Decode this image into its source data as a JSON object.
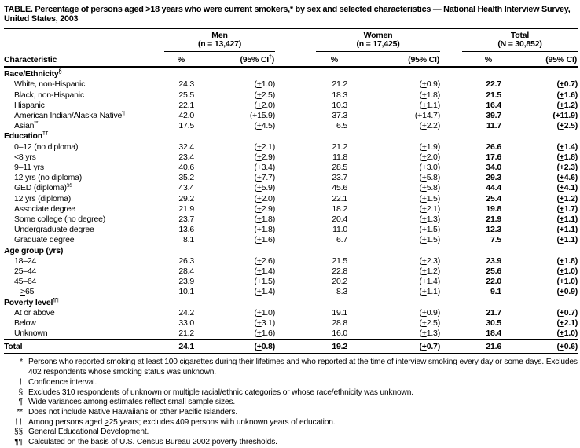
{
  "title": "TABLE. Percentage of persons aged ≥18 years who were current smokers,* by sex and selected characteristics — National Health Interview Survey, United States, 2003",
  "table": {
    "characteristic_header": "Characteristic",
    "groups": [
      {
        "label": "Men",
        "n": "(n = 13,427)",
        "pct_header": "%",
        "ci_header": "(95% CI†)"
      },
      {
        "label": "Women",
        "n": "(n = 17,425)",
        "pct_header": "%",
        "ci_header": "(95% CI)"
      },
      {
        "label": "Total",
        "n": "(N = 30,852)",
        "pct_header": "%",
        "ci_header": "(95% CI)"
      }
    ],
    "sections": [
      {
        "header": "Race/Ethnicity",
        "header_sup": "§",
        "rows": [
          {
            "label": "White, non-Hispanic",
            "sup": "",
            "indent": 1,
            "men": [
              "24.3",
              "(±1.0)"
            ],
            "women": [
              "21.2",
              "(±0.9)"
            ],
            "total": [
              "22.7",
              "(±0.7)"
            ]
          },
          {
            "label": "Black, non-Hispanic",
            "sup": "",
            "indent": 1,
            "men": [
              "25.5",
              "(±2.5)"
            ],
            "women": [
              "18.3",
              "(±1.8)"
            ],
            "total": [
              "21.5",
              "(±1.6)"
            ]
          },
          {
            "label": "Hispanic",
            "sup": "",
            "indent": 1,
            "men": [
              "22.1",
              "(±2.0)"
            ],
            "women": [
              "10.3",
              "(±1.1)"
            ],
            "total": [
              "16.4",
              "(±1.2)"
            ]
          },
          {
            "label": "American Indian/Alaska Native",
            "sup": "¶",
            "indent": 1,
            "men": [
              "42.0",
              "(±15.9)"
            ],
            "women": [
              "37.3",
              "(±14.7)"
            ],
            "total": [
              "39.7",
              "(±11.9)"
            ]
          },
          {
            "label": "Asian",
            "sup": "**",
            "indent": 1,
            "men": [
              "17.5",
              "(±4.5)"
            ],
            "women": [
              "6.5",
              "(±2.2)"
            ],
            "total": [
              "11.7",
              "(±2.5)"
            ]
          }
        ]
      },
      {
        "header": "Education",
        "header_sup": "††",
        "rows": [
          {
            "label": "0–12 (no diploma)",
            "sup": "",
            "indent": 1,
            "men": [
              "32.4",
              "(±2.1)"
            ],
            "women": [
              "21.2",
              "(±1.9)"
            ],
            "total": [
              "26.6",
              "(±1.4)"
            ]
          },
          {
            "label": "<8 yrs",
            "sup": "",
            "indent": 1,
            "men": [
              "23.4",
              "(±2.9)"
            ],
            "women": [
              "11.8",
              "(±2.0)"
            ],
            "total": [
              "17.6",
              "(±1.8)"
            ]
          },
          {
            "label": "9–11 yrs",
            "sup": "",
            "indent": 1,
            "men": [
              "40.6",
              "(±3.4)"
            ],
            "women": [
              "28.5",
              "(±3.0)"
            ],
            "total": [
              "34.0",
              "(±2.3)"
            ]
          },
          {
            "label": "12 yrs (no diploma)",
            "sup": "",
            "indent": 1,
            "men": [
              "35.2",
              "(±7.7)"
            ],
            "women": [
              "23.7",
              "(±5.8)"
            ],
            "total": [
              "29.3",
              "(±4.6)"
            ]
          },
          {
            "label": "GED (diploma)",
            "sup": "§§",
            "indent": 1,
            "men": [
              "43.4",
              "(±5.9)"
            ],
            "women": [
              "45.6",
              "(±5.8)"
            ],
            "total": [
              "44.4",
              "(±4.1)"
            ]
          },
          {
            "label": "12 yrs (diploma)",
            "sup": "",
            "indent": 1,
            "men": [
              "29.2",
              "(±2.0)"
            ],
            "women": [
              "22.1",
              "(±1.5)"
            ],
            "total": [
              "25.4",
              "(±1.2)"
            ]
          },
          {
            "label": "Associate degree",
            "sup": "",
            "indent": 1,
            "men": [
              "21.9",
              "(±2.9)"
            ],
            "women": [
              "18.2",
              "(±2.1)"
            ],
            "total": [
              "19.8",
              "(±1.7)"
            ]
          },
          {
            "label": "Some college (no degree)",
            "sup": "",
            "indent": 1,
            "men": [
              "23.7",
              "(±1.8)"
            ],
            "women": [
              "20.4",
              "(±1.3)"
            ],
            "total": [
              "21.9",
              "(±1.1)"
            ]
          },
          {
            "label": "Undergraduate degree",
            "sup": "",
            "indent": 1,
            "men": [
              "13.6",
              "(±1.8)"
            ],
            "women": [
              "11.0",
              "(±1.5)"
            ],
            "total": [
              "12.3",
              "(±1.1)"
            ]
          },
          {
            "label": "Graduate degree",
            "sup": "",
            "indent": 1,
            "men": [
              "8.1",
              "(±1.6)"
            ],
            "women": [
              "6.7",
              "(±1.5)"
            ],
            "total": [
              "7.5",
              "(±1.1)"
            ]
          }
        ]
      },
      {
        "header": "Age group (yrs)",
        "header_sup": "",
        "rows": [
          {
            "label": "18–24",
            "sup": "",
            "indent": 1,
            "men": [
              "26.3",
              "(±2.6)"
            ],
            "women": [
              "21.5",
              "(±2.3)"
            ],
            "total": [
              "23.9",
              "(±1.8)"
            ]
          },
          {
            "label": "25–44",
            "sup": "",
            "indent": 1,
            "men": [
              "28.4",
              "(±1.4)"
            ],
            "women": [
              "22.8",
              "(±1.2)"
            ],
            "total": [
              "25.6",
              "(±1.0)"
            ]
          },
          {
            "label": "45–64",
            "sup": "",
            "indent": 1,
            "men": [
              "23.9",
              "(±1.5)"
            ],
            "women": [
              "20.2",
              "(±1.4)"
            ],
            "total": [
              "22.0",
              "(±1.0)"
            ]
          },
          {
            "label": "≥65",
            "sup": "",
            "indent": 2,
            "men": [
              "10.1",
              "(±1.4)"
            ],
            "women": [
              "8.3",
              "(±1.1)"
            ],
            "total": [
              "9.1",
              "(±0.9)"
            ]
          }
        ]
      },
      {
        "header": "Poverty level",
        "header_sup": "¶¶",
        "rows": [
          {
            "label": "At or above",
            "sup": "",
            "indent": 1,
            "men": [
              "24.2",
              "(±1.0)"
            ],
            "women": [
              "19.1",
              "(±0.9)"
            ],
            "total": [
              "21.7",
              "(±0.7)"
            ]
          },
          {
            "label": "Below",
            "sup": "",
            "indent": 1,
            "men": [
              "33.0",
              "(±3.1)"
            ],
            "women": [
              "28.8",
              "(±2.5)"
            ],
            "total": [
              "30.5",
              "(±2.1)"
            ]
          },
          {
            "label": "Unknown",
            "sup": "",
            "indent": 1,
            "men": [
              "21.2",
              "(±1.6)"
            ],
            "women": [
              "16.0",
              "(±1.3)"
            ],
            "total": [
              "18.4",
              "(±1.0)"
            ]
          }
        ]
      }
    ],
    "total_row": {
      "label": "Total",
      "men": [
        "24.1",
        "(±0.8)"
      ],
      "women": [
        "19.2",
        "(±0.7)"
      ],
      "total": [
        "21.6",
        "(±0.6)"
      ]
    }
  },
  "footnotes": [
    {
      "marker": "*",
      "text": "Persons who reported smoking at least 100 cigarettes during their lifetimes and who reported at the time of interview smoking every day or some days. Excludes 402 respondents whose smoking status was unknown."
    },
    {
      "marker": "†",
      "text": "Confidence interval."
    },
    {
      "marker": "§",
      "text": "Excludes 310 respondents of unknown or multiple racial/ethnic categories or whose race/ethnicity was unknown."
    },
    {
      "marker": "¶",
      "text": "Wide variances among estimates reflect small sample sizes."
    },
    {
      "marker": "**",
      "text": "Does not include Native Hawaiians or other Pacific Islanders."
    },
    {
      "marker": "††",
      "text": "Among persons aged ≥25 years; excludes 409 persons with unknown years of education."
    },
    {
      "marker": "§§",
      "text": "General Educational Development."
    },
    {
      "marker": "¶¶",
      "text": "Calculated on the basis of U.S. Census Bureau 2002 poverty thresholds."
    }
  ]
}
